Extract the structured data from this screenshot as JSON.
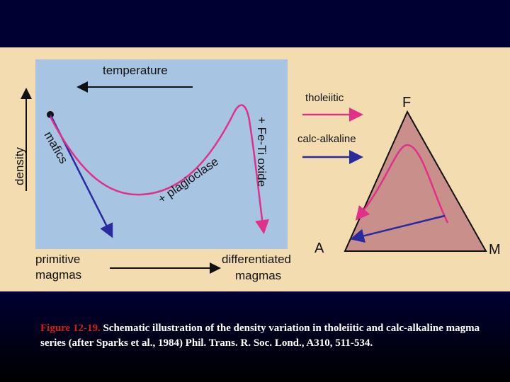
{
  "diagram": {
    "left_panel": {
      "top_axis_label": "temperature",
      "side_axis_label": "density",
      "curve_labels": [
        "mafics",
        "+ plagioclase",
        "+ Fe-Ti oxide"
      ],
      "bottom_left_label": [
        "primitive",
        "magmas"
      ],
      "bottom_right_label": [
        "differentiated",
        "magmas"
      ]
    },
    "right_panel": {
      "legend": [
        "tholeiitic",
        "calc-alkaline"
      ],
      "vertices": {
        "top": "F",
        "left": "A",
        "right": "M"
      }
    }
  },
  "caption": {
    "figure_label": "Figure 12-19.",
    "text": "Schematic illustration of the density variation in tholeiitic and calc-alkaline magma series (after Sparks et al., 1984) Phil. Trans. R. Soc. Lond., A310, 511-534."
  }
}
